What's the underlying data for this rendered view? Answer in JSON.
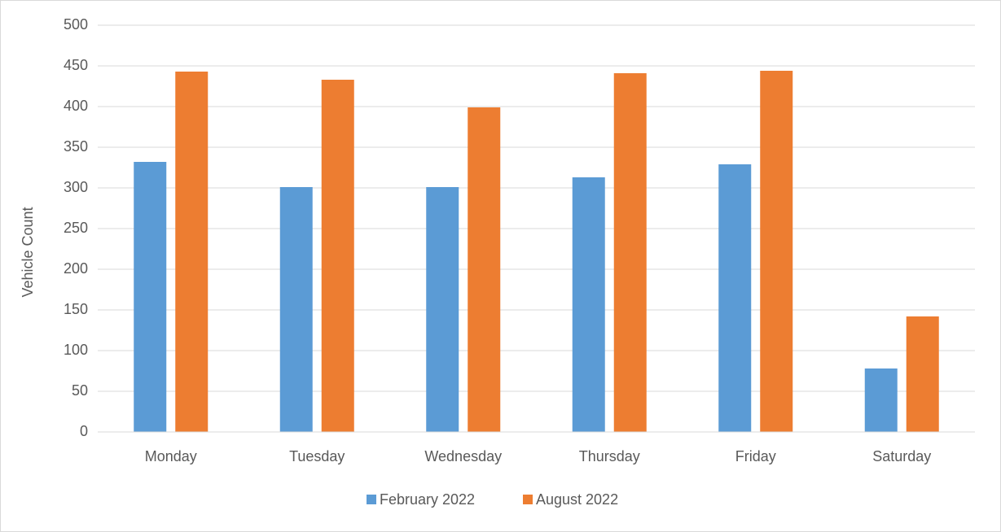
{
  "chart_data": {
    "type": "bar",
    "y_label": "Vehicle Count",
    "categories": [
      "Monday",
      "Tuesday",
      "Wednesday",
      "Thursday",
      "Friday",
      "Saturday"
    ],
    "series": [
      {
        "name": "February 2022",
        "color": "#5b9bd5",
        "values": [
          332,
          301,
          301,
          313,
          329,
          78
        ]
      },
      {
        "name": "August 2022",
        "color": "#ed7d31",
        "values": [
          443,
          433,
          399,
          441,
          444,
          142
        ]
      }
    ],
    "ylim": [
      0,
      500
    ],
    "yticks": [
      0,
      50,
      100,
      150,
      200,
      250,
      300,
      350,
      400,
      450,
      500
    ],
    "grid": true,
    "legend": "bottom"
  }
}
